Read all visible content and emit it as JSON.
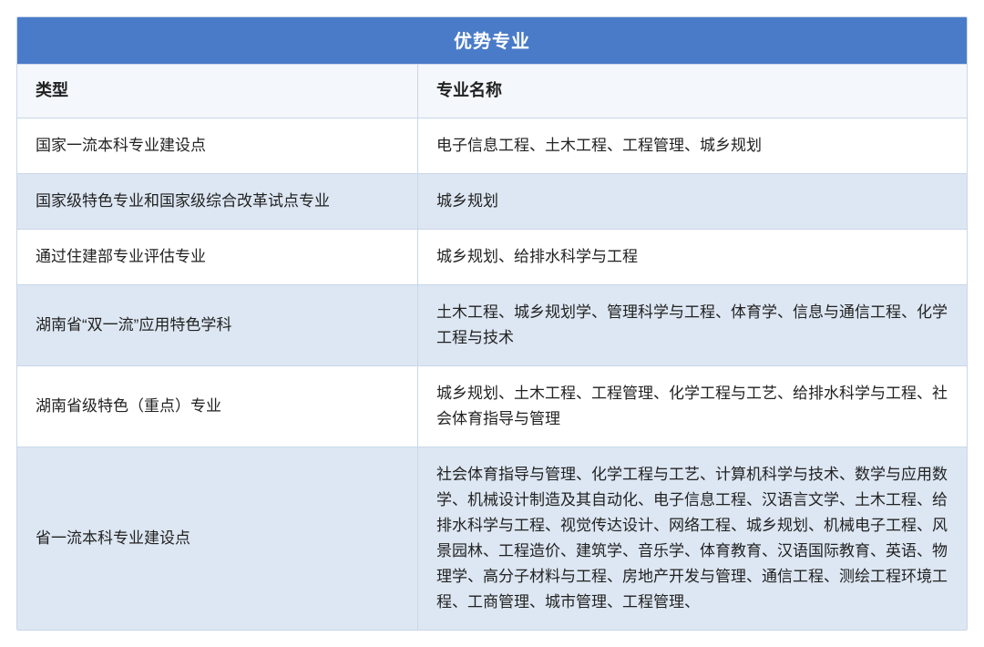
{
  "table": {
    "title": "优势专业",
    "title_bg": "#4a7bc8",
    "title_color": "#ffffff",
    "title_fontsize": 20,
    "border_color": "#c9d7e8",
    "row_alt_bg": "#dde7f3",
    "row_white_bg": "#ffffff",
    "header_bg": "#f4f7fb",
    "text_color": "#222222",
    "cell_fontsize": 17,
    "header_fontsize": 18,
    "col_left_width": 440,
    "columns": [
      "类型",
      "专业名称"
    ],
    "rows": [
      {
        "type": "国家一流本科专业建设点",
        "majors": "电子信息工程、土木工程、工程管理、城乡规划",
        "bg": "white"
      },
      {
        "type": "国家级特色专业和国家级综合改革试点专业",
        "majors": "城乡规划",
        "bg": "blue"
      },
      {
        "type": "通过住建部专业评估专业",
        "majors": "城乡规划、给排水科学与工程",
        "bg": "white"
      },
      {
        "type": "湖南省“双一流”应用特色学科",
        "majors": "土木工程、城乡规划学、管理科学与工程、体育学、信息与通信工程、化学工程与技术",
        "bg": "blue"
      },
      {
        "type": "湖南省级特色（重点）专业",
        "majors": "城乡规划、土木工程、工程管理、化学工程与工艺、给排水科学与工程、社会体育指导与管理",
        "bg": "white"
      },
      {
        "type": "省一流本科专业建设点",
        "majors": "社会体育指导与管理、化学工程与工艺、计算机科学与技术、数学与应用数学、机械设计制造及其自动化、电子信息工程、汉语言文学、土木工程、给排水科学与工程、视觉传达设计、网络工程、城乡规划、机械电子工程、风景园林、工程造价、建筑学、音乐学、体育教育、汉语国际教育、英语、物理学、高分子材料与工程、房地产开发与管理、通信工程、测绘工程环境工程、工商管理、城市管理、工程管理、",
        "bg": "blue"
      }
    ]
  }
}
